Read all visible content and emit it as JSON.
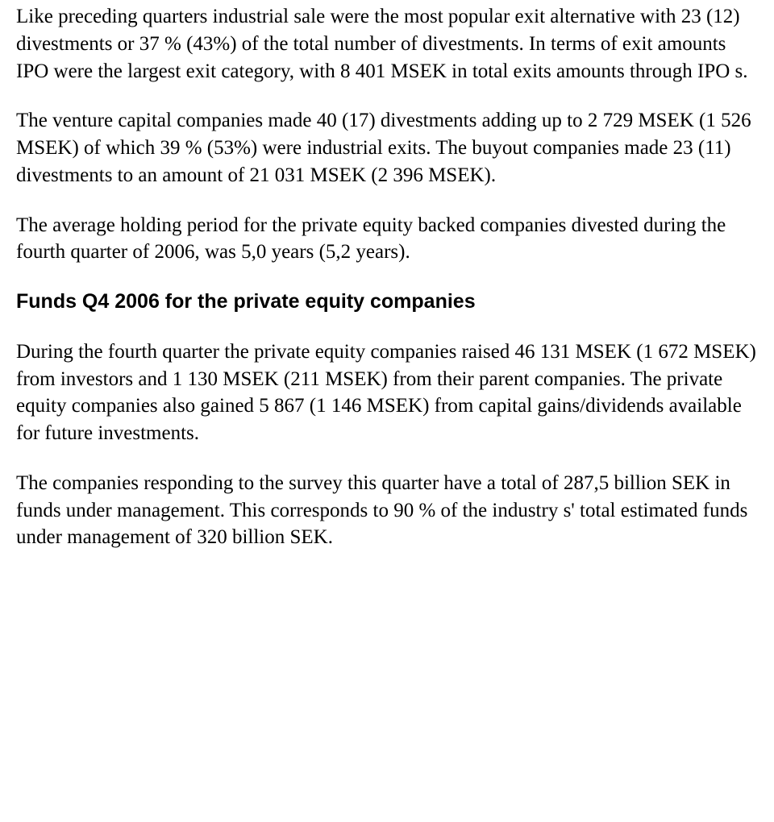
{
  "paragraphs": {
    "p1": "Like preceding quarters industrial sale were the most popular exit alternative with 23 (12) divestments or 37 % (43%) of the total number of divestments. In terms of exit amounts IPO were the largest exit category, with 8 401 MSEK in total exits amounts through IPO s.",
    "p2": "The venture capital companies made 40 (17) divestments adding up to 2 729 MSEK (1 526 MSEK) of which 39 % (53%) were industrial exits. The buyout companies made 23 (11) divestments to an amount of 21 031 MSEK (2 396 MSEK).",
    "p3": "The average holding period for the private equity backed companies divested during the fourth quarter of 2006, was 5,0 years (5,2 years).",
    "p4": "During the fourth quarter the private equity companies raised 46 131 MSEK (1 672 MSEK) from investors and 1 130 MSEK (211 MSEK) from their parent companies. The private equity companies also gained 5 867 (1 146 MSEK) from capital gains/dividends available for future investments.",
    "p5": "The companies responding to the survey this quarter have a total of 287,5 billion SEK in funds under management. This corresponds to 90 % of the industry s' total estimated funds under management of 320 billion SEK."
  },
  "heading": "Funds Q4 2006 for the private equity companies"
}
